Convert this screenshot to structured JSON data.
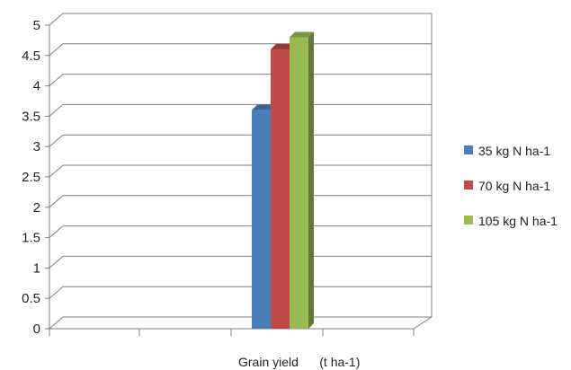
{
  "chart_data": {
    "type": "bar",
    "style": "3d-clustered-column",
    "categories": [
      "Grain yield      (t ha-1)"
    ],
    "series": [
      {
        "name": "35 kg N ha-1",
        "values": [
          3.6
        ],
        "color": "#4a7ebb"
      },
      {
        "name": "70 kg N ha-1",
        "values": [
          4.6
        ],
        "color": "#be4b48"
      },
      {
        "name": "105 kg N ha-1",
        "values": [
          4.8
        ],
        "color": "#98b954"
      }
    ],
    "ylim": [
      0,
      5
    ],
    "yticks": [
      "0",
      "0.5",
      "1",
      "1.5",
      "2",
      "2.5",
      "3",
      "3.5",
      "4",
      "4.5",
      "5"
    ],
    "grid": true,
    "legend": "right",
    "title": "",
    "xlabel": "",
    "ylabel": ""
  }
}
